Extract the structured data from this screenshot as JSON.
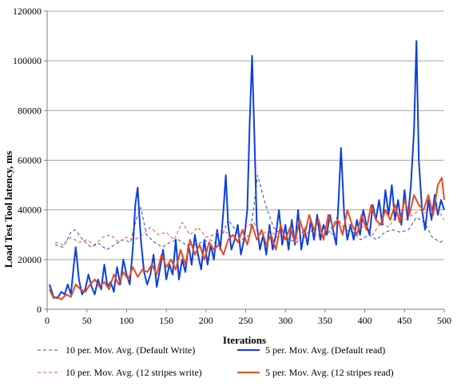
{
  "chart_data": {
    "type": "line",
    "title": "",
    "xlabel": "Iterations",
    "ylabel": "Load Test Tool latency, ms",
    "xlim": [
      0,
      500
    ],
    "ylim": [
      0,
      120000
    ],
    "xticks": [
      0,
      50,
      100,
      150,
      200,
      250,
      300,
      350,
      400,
      450,
      500
    ],
    "yticks": [
      0,
      20000,
      40000,
      60000,
      80000,
      100000,
      120000
    ],
    "xtick_labels": [
      "0",
      "50",
      "100",
      "150",
      "200",
      "250",
      "300",
      "350",
      "400",
      "450",
      "500"
    ],
    "ytick_labels": [
      "0",
      "20000",
      "40000",
      "60000",
      "80000",
      "100000",
      "120000"
    ],
    "grid": "horizontal",
    "legend_position": "bottom",
    "series": [
      {
        "name": "10 per. Mov. Avg. (Default Write)",
        "color": "#1f4fd6",
        "style": "dashed",
        "width": 1,
        "x": [
          10,
          20,
          30,
          35,
          45,
          55,
          65,
          75,
          85,
          95,
          105,
          112,
          118,
          125,
          135,
          145,
          155,
          165,
          175,
          185,
          195,
          205,
          215,
          222,
          228,
          235,
          245,
          255,
          260,
          265,
          275,
          285,
          295,
          305,
          315,
          325,
          335,
          345,
          355,
          365,
          375,
          385,
          395,
          405,
          415,
          425,
          435,
          445,
          455,
          465,
          475,
          485,
          495,
          500
        ],
        "y": [
          26000,
          25000,
          31000,
          32000,
          28000,
          25000,
          26500,
          24000,
          26000,
          28000,
          27000,
          36000,
          41000,
          30000,
          27000,
          25000,
          27000,
          28000,
          26000,
          26000,
          27000,
          28000,
          26000,
          31000,
          36000,
          33000,
          28000,
          30000,
          40000,
          54000,
          42000,
          33000,
          30000,
          28000,
          27000,
          33000,
          31000,
          29000,
          31000,
          37000,
          32000,
          31000,
          28000,
          30000,
          28000,
          31000,
          32000,
          31000,
          32000,
          37000,
          35000,
          29000,
          27000,
          28000
        ]
      },
      {
        "name": "5 per. Mov. Avg. (Default read)",
        "color": "#0c3fe0",
        "style": "solid",
        "width": 2,
        "x": [
          3,
          8,
          13,
          18,
          22,
          26,
          30,
          33,
          36,
          40,
          44,
          48,
          52,
          56,
          60,
          64,
          68,
          72,
          76,
          80,
          84,
          88,
          92,
          96,
          100,
          104,
          108,
          111,
          114,
          118,
          122,
          126,
          130,
          134,
          138,
          142,
          146,
          150,
          154,
          158,
          162,
          166,
          170,
          174,
          178,
          182,
          186,
          190,
          194,
          198,
          202,
          206,
          210,
          214,
          218,
          222,
          225,
          228,
          232,
          236,
          240,
          244,
          248,
          252,
          255,
          258,
          261,
          264,
          268,
          272,
          276,
          280,
          284,
          288,
          292,
          296,
          300,
          304,
          308,
          312,
          316,
          320,
          324,
          328,
          332,
          336,
          340,
          344,
          348,
          352,
          356,
          360,
          364,
          367,
          370,
          374,
          378,
          382,
          386,
          390,
          394,
          398,
          402,
          406,
          410,
          414,
          418,
          422,
          426,
          430,
          434,
          438,
          442,
          446,
          450,
          454,
          458,
          462,
          465,
          468,
          472,
          476,
          480,
          484,
          488,
          492,
          496,
          500
        ],
        "y": [
          10000,
          5000,
          4500,
          7000,
          6000,
          10000,
          6000,
          16000,
          25000,
          12000,
          6000,
          8000,
          14000,
          9000,
          6000,
          12000,
          8000,
          18000,
          9000,
          11000,
          7000,
          17000,
          10000,
          20000,
          14000,
          10000,
          25000,
          42000,
          49000,
          28000,
          15000,
          10000,
          14000,
          22000,
          9000,
          16000,
          24000,
          12000,
          18000,
          14000,
          28000,
          12000,
          20000,
          15000,
          26000,
          18000,
          30000,
          22000,
          16000,
          28000,
          18000,
          26000,
          20000,
          32000,
          24000,
          40000,
          54000,
          34000,
          24000,
          28000,
          34000,
          22000,
          28000,
          40000,
          75000,
          102000,
          70000,
          34000,
          24000,
          30000,
          22000,
          34000,
          24000,
          30000,
          40000,
          26000,
          34000,
          24000,
          36000,
          26000,
          40000,
          24000,
          32000,
          26000,
          36000,
          28000,
          38000,
          28000,
          34000,
          30000,
          38000,
          32000,
          26000,
          44000,
          65000,
          38000,
          28000,
          34000,
          28000,
          36000,
          30000,
          40000,
          34000,
          30000,
          42000,
          36000,
          44000,
          34000,
          48000,
          38000,
          50000,
          36000,
          44000,
          34000,
          48000,
          36000,
          50000,
          72000,
          108000,
          60000,
          40000,
          32000,
          44000,
          36000,
          46000,
          38000,
          44000,
          40000
        ]
      },
      {
        "name": "10 per. Mov. Avg. (12 stripes write)",
        "color": "#e8533a",
        "style": "dashed",
        "width": 1,
        "x": [
          10,
          20,
          30,
          40,
          50,
          60,
          70,
          80,
          90,
          100,
          110,
          120,
          130,
          140,
          150,
          160,
          170,
          180,
          190,
          200,
          210,
          220,
          230,
          240,
          250,
          260,
          270,
          280,
          290,
          300,
          310,
          320,
          330,
          340,
          350,
          360,
          370,
          380,
          390,
          400,
          410,
          420,
          430,
          440,
          450,
          460,
          470,
          480,
          490,
          500
        ],
        "y": [
          27000,
          26000,
          29000,
          27000,
          28000,
          26000,
          29000,
          30000,
          27000,
          29000,
          28000,
          30000,
          33000,
          30000,
          31000,
          28000,
          35000,
          30000,
          33000,
          29000,
          30000,
          32000,
          30000,
          28000,
          33000,
          35000,
          30000,
          32000,
          29000,
          28000,
          30000,
          27000,
          32000,
          30000,
          33000,
          30000,
          31000,
          34000,
          31000,
          34000,
          30000,
          35000,
          33000,
          38000,
          36000,
          38000,
          40000,
          38000,
          41000,
          36000
        ]
      },
      {
        "name": "5 per. Mov. Avg. (12 stripes read)",
        "color": "#ea4a1f",
        "style": "solid",
        "width": 2,
        "x": [
          3,
          8,
          13,
          18,
          24,
          30,
          36,
          42,
          48,
          54,
          60,
          66,
          72,
          78,
          84,
          90,
          96,
          102,
          108,
          114,
          120,
          126,
          132,
          138,
          144,
          150,
          156,
          162,
          168,
          174,
          180,
          186,
          192,
          198,
          204,
          210,
          216,
          222,
          228,
          234,
          240,
          246,
          252,
          258,
          264,
          270,
          276,
          282,
          288,
          294,
          300,
          306,
          312,
          318,
          324,
          330,
          336,
          342,
          348,
          354,
          360,
          366,
          372,
          378,
          384,
          390,
          396,
          402,
          408,
          414,
          420,
          426,
          432,
          438,
          444,
          450,
          456,
          462,
          468,
          474,
          480,
          486,
          492,
          497,
          500
        ],
        "y": [
          8000,
          4500,
          5000,
          4000,
          6000,
          5000,
          10000,
          8000,
          7000,
          10000,
          12000,
          9000,
          11000,
          8000,
          14000,
          10000,
          15000,
          12000,
          17000,
          13000,
          16000,
          15000,
          18000,
          14000,
          22000,
          17000,
          20000,
          16000,
          24000,
          18000,
          28000,
          22000,
          26000,
          20000,
          27000,
          24000,
          26000,
          22000,
          28000,
          30000,
          27000,
          32000,
          26000,
          34000,
          28000,
          32000,
          26000,
          30000,
          24000,
          34000,
          28000,
          33000,
          27000,
          36000,
          30000,
          38000,
          32000,
          36000,
          28000,
          38000,
          33000,
          36000,
          30000,
          40000,
          34000,
          30000,
          38000,
          32000,
          42000,
          36000,
          34000,
          40000,
          36000,
          42000,
          35000,
          44000,
          38000,
          46000,
          42000,
          40000,
          46000,
          38000,
          50000,
          53000,
          44000
        ]
      }
    ]
  }
}
